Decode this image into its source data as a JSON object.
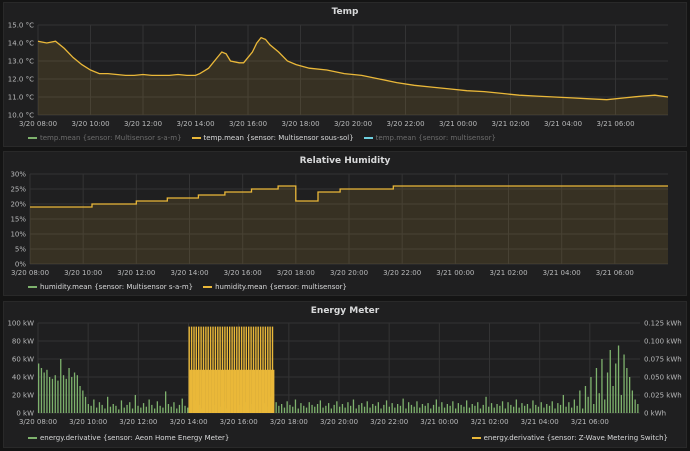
{
  "colors": {
    "green": "#7eb26d",
    "yellow": "#eab839",
    "cyan": "#6ed0e0",
    "grid": "#333334",
    "text": "#b8b9ba"
  },
  "chart_data": [
    {
      "type": "line",
      "title": "Temp",
      "x_labels": [
        "3/20 08:00",
        "3/20 10:00",
        "3/20 12:00",
        "3/20 14:00",
        "3/20 16:00",
        "3/20 18:00",
        "3/20 20:00",
        "3/20 22:00",
        "3/21 00:00",
        "3/21 02:00",
        "3/21 04:00",
        "3/21 06:00"
      ],
      "y_ticks": [
        "15.0 °C",
        "14.0 °C",
        "13.0 °C",
        "12.0 °C",
        "11.0 °C",
        "10.0 °C"
      ],
      "ylim": [
        10,
        15
      ],
      "xlim": [
        0,
        1440
      ],
      "legend": [
        {
          "name": "temp.mean {sensor: Multisensor s-a-m}",
          "color": "green",
          "active": false
        },
        {
          "name": "temp.mean {sensor: Multisensor sous-sol}",
          "color": "yellow",
          "active": true
        },
        {
          "name": "temp.mean {sensor: multisensor}",
          "color": "cyan",
          "active": false
        }
      ],
      "series": [
        {
          "name": "temp.mean {sensor: Multisensor sous-sol}",
          "color": "yellow",
          "points": [
            [
              0,
              14.1
            ],
            [
              20,
              14.0
            ],
            [
              40,
              14.1
            ],
            [
              60,
              13.7
            ],
            [
              80,
              13.2
            ],
            [
              100,
              12.8
            ],
            [
              120,
              12.5
            ],
            [
              140,
              12.3
            ],
            [
              160,
              12.3
            ],
            [
              180,
              12.25
            ],
            [
              200,
              12.2
            ],
            [
              220,
              12.2
            ],
            [
              240,
              12.25
            ],
            [
              260,
              12.2
            ],
            [
              280,
              12.2
            ],
            [
              300,
              12.2
            ],
            [
              320,
              12.25
            ],
            [
              340,
              12.2
            ],
            [
              360,
              12.2
            ],
            [
              370,
              12.3
            ],
            [
              390,
              12.6
            ],
            [
              410,
              13.2
            ],
            [
              420,
              13.5
            ],
            [
              430,
              13.4
            ],
            [
              440,
              13.0
            ],
            [
              460,
              12.9
            ],
            [
              470,
              12.9
            ],
            [
              490,
              13.5
            ],
            [
              500,
              14.0
            ],
            [
              510,
              14.3
            ],
            [
              520,
              14.2
            ],
            [
              530,
              13.9
            ],
            [
              550,
              13.5
            ],
            [
              570,
              13.0
            ],
            [
              590,
              12.8
            ],
            [
              620,
              12.6
            ],
            [
              660,
              12.5
            ],
            [
              700,
              12.3
            ],
            [
              740,
              12.2
            ],
            [
              780,
              12.0
            ],
            [
              820,
              11.8
            ],
            [
              860,
              11.65
            ],
            [
              900,
              11.55
            ],
            [
              940,
              11.45
            ],
            [
              980,
              11.35
            ],
            [
              1020,
              11.3
            ],
            [
              1060,
              11.2
            ],
            [
              1100,
              11.1
            ],
            [
              1140,
              11.05
            ],
            [
              1180,
              11.0
            ],
            [
              1220,
              10.95
            ],
            [
              1260,
              10.9
            ],
            [
              1300,
              10.85
            ],
            [
              1340,
              10.95
            ],
            [
              1380,
              11.05
            ],
            [
              1410,
              11.1
            ],
            [
              1440,
              11.0
            ]
          ]
        }
      ]
    },
    {
      "type": "area",
      "title": "Relative Humidity",
      "x_labels": [
        "3/20 08:00",
        "3/20 10:00",
        "3/20 12:00",
        "3/20 14:00",
        "3/20 16:00",
        "3/20 18:00",
        "3/20 20:00",
        "3/20 22:00",
        "3/21 00:00",
        "3/21 02:00",
        "3/21 04:00",
        "3/21 06:00"
      ],
      "y_ticks": [
        "30%",
        "25%",
        "20%",
        "15%",
        "10%",
        "5%",
        "0%"
      ],
      "ylim": [
        0,
        30
      ],
      "xlim": [
        0,
        1440
      ],
      "legend": [
        {
          "name": "humidity.mean {sensor: Multisensor s-a-m}",
          "color": "green",
          "active": true
        },
        {
          "name": "humidity.mean {sensor: multisensor}",
          "color": "yellow",
          "active": true
        }
      ],
      "series": [
        {
          "name": "humidity.mean {sensor: multisensor}",
          "color": "yellow",
          "points": [
            [
              0,
              19
            ],
            [
              140,
              19
            ],
            [
              140,
              20
            ],
            [
              240,
              20
            ],
            [
              240,
              21
            ],
            [
              310,
              21
            ],
            [
              310,
              22
            ],
            [
              380,
              22
            ],
            [
              380,
              23
            ],
            [
              440,
              23
            ],
            [
              440,
              24
            ],
            [
              500,
              24
            ],
            [
              500,
              25
            ],
            [
              560,
              25
            ],
            [
              560,
              26
            ],
            [
              600,
              26
            ],
            [
              600,
              21
            ],
            [
              650,
              21
            ],
            [
              650,
              24
            ],
            [
              700,
              24
            ],
            [
              700,
              25
            ],
            [
              820,
              25
            ],
            [
              820,
              26
            ],
            [
              1440,
              26
            ]
          ]
        }
      ]
    },
    {
      "type": "bar",
      "title": "Energy Meter",
      "x_labels": [
        "3/20 08:00",
        "3/20 10:00",
        "3/20 12:00",
        "3/20 14:00",
        "3/20 16:00",
        "3/20 18:00",
        "3/20 20:00",
        "3/20 22:00",
        "3/21 00:00",
        "3/21 02:00",
        "3/21 04:00",
        "3/21 06:00"
      ],
      "y_ticks_left": [
        "100 kW",
        "80 kW",
        "60 kW",
        "40 kW",
        "20 kW",
        "0 kW"
      ],
      "y_ticks_right": [
        "0.125 kWh",
        "0.100 kWh",
        "0.075 kWh",
        "0.050 kWh",
        "0.025 kWh",
        "0 kWh"
      ],
      "ylim_left": [
        0,
        100
      ],
      "ylim_right": [
        0,
        0.125
      ],
      "xlim": [
        0,
        1440
      ],
      "legend": [
        {
          "name": "energy.derivative {sensor: Aeon Home Energy Meter}",
          "color": "green"
        },
        {
          "name": "energy.derivative {sensor: Z-Wave Metering Switch}",
          "color": "yellow"
        }
      ],
      "series": [
        {
          "name": "energy.derivative {sensor: Aeon Home Energy Meter}",
          "color": "green",
          "values_kw": [
            55,
            50,
            45,
            48,
            40,
            38,
            42,
            36,
            60,
            42,
            38,
            50,
            40,
            45,
            42,
            30,
            25,
            18,
            10,
            8,
            15,
            6,
            12,
            9,
            5,
            18,
            7,
            10,
            8,
            4,
            14,
            6,
            9,
            12,
            5,
            20,
            8,
            6,
            11,
            7,
            15,
            9,
            5,
            13,
            8,
            6,
            24,
            10,
            7,
            12,
            5,
            9,
            16,
            8,
            6,
            10,
            7,
            14,
            9,
            5,
            12,
            8,
            22,
            6,
            9,
            11,
            7,
            13,
            5,
            8,
            10,
            6,
            15,
            9,
            7,
            12,
            5,
            10,
            8,
            14,
            6,
            9,
            11,
            7,
            18,
            5,
            12,
            8,
            10,
            6,
            13,
            9,
            7,
            15,
            5,
            11,
            8,
            6,
            12,
            9,
            7,
            10,
            14,
            6,
            8,
            11,
            5,
            9,
            13,
            7,
            10,
            6,
            12,
            8,
            15,
            5,
            9,
            11,
            7,
            13,
            6,
            10,
            8,
            12,
            5,
            9,
            14,
            7,
            11,
            6,
            10,
            8,
            16,
            5,
            12,
            9,
            7,
            13,
            6,
            10,
            8,
            11,
            5,
            9,
            15,
            7,
            12,
            6,
            10,
            8,
            13,
            5,
            11,
            9,
            7,
            14,
            6,
            10,
            8,
            12,
            5,
            9,
            18,
            7,
            11,
            6,
            10,
            8,
            13,
            5,
            12,
            9,
            7,
            15,
            6,
            11,
            8,
            10,
            5,
            14,
            9,
            7,
            12,
            6,
            10,
            8,
            13,
            5,
            11,
            9,
            20,
            7,
            12,
            6,
            15,
            8,
            25,
            5,
            30,
            18,
            40,
            10,
            50,
            22,
            60,
            15,
            45,
            70,
            30,
            55,
            75,
            20,
            65,
            50,
            40,
            25,
            15,
            10
          ]
        },
        {
          "name": "energy.derivative {sensor: Z-Wave Metering Switch}",
          "color": "yellow",
          "start": 360,
          "end": 565,
          "values_kwh": [
            0.12,
            0.06,
            0.12,
            0.06,
            0.12,
            0.06,
            0.12,
            0.06,
            0.12,
            0.06,
            0.12,
            0.06,
            0.12,
            0.06,
            0.12,
            0.06,
            0.12,
            0.06,
            0.12,
            0.06,
            0.12,
            0.06,
            0.12,
            0.06,
            0.12,
            0.06,
            0.12,
            0.06,
            0.12,
            0.06,
            0.12,
            0.06,
            0.12,
            0.06,
            0.12,
            0.06,
            0.12,
            0.06,
            0.12,
            0.06,
            0.12,
            0.06,
            0.12,
            0.06,
            0.12,
            0.06,
            0.12,
            0.06,
            0.12,
            0.06,
            0.12,
            0.06,
            0.12,
            0.06,
            0.12,
            0.06,
            0.12,
            0.06,
            0.12,
            0.06,
            0.12,
            0.06,
            0.12,
            0.06,
            0.12,
            0.06,
            0.12,
            0.06,
            0.12,
            0.06,
            0.12,
            0.06
          ]
        }
      ]
    }
  ]
}
